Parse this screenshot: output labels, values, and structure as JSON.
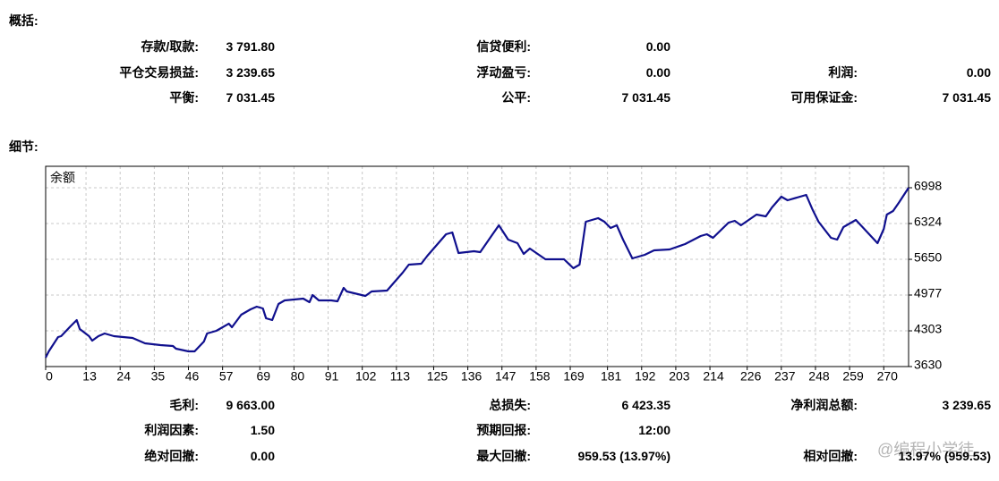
{
  "summary": {
    "title": "概括:",
    "rows": [
      [
        {
          "label": "存款/取款:",
          "value": "3 791.80"
        },
        {
          "label": "信贷便利:",
          "value": "0.00"
        }
      ],
      [
        {
          "label": "平仓交易损益:",
          "value": "3 239.65"
        },
        {
          "label": "浮动盈亏:",
          "value": "0.00"
        },
        {
          "label": "利润:",
          "value": "0.00"
        }
      ],
      [
        {
          "label": "平衡:",
          "value": "7 031.45"
        },
        {
          "label": "公平:",
          "value": "7 031.45"
        },
        {
          "label": "可用保证金:",
          "value": "7 031.45"
        }
      ]
    ]
  },
  "details_title": "细节:",
  "chart_data": {
    "type": "line",
    "x": [
      0,
      1,
      4,
      5,
      8,
      10,
      11,
      14,
      15,
      17,
      19,
      22,
      28,
      32,
      37,
      41,
      42,
      46,
      48,
      51,
      52,
      55,
      59,
      60,
      63,
      66,
      68,
      70,
      71,
      73,
      75,
      77,
      83,
      85,
      86,
      88,
      92,
      94,
      96,
      97,
      103,
      105,
      110,
      113,
      115,
      117,
      121,
      123,
      127,
      129,
      131,
      133,
      138,
      140,
      144,
      146,
      149,
      152,
      154,
      156,
      161,
      167,
      170,
      172,
      174,
      178,
      180,
      182,
      184,
      186,
      189,
      193,
      196,
      201,
      206,
      211,
      213,
      215,
      220,
      222,
      224,
      229,
      232,
      234,
      237,
      239,
      245,
      247,
      249,
      253,
      255,
      257,
      261,
      268,
      270,
      271,
      273,
      275,
      278
    ],
    "series": [
      {
        "name": "余额",
        "color": "#10108e",
        "values": [
          3798,
          3916,
          4186,
          4203,
          4388,
          4506,
          4337,
          4203,
          4118,
          4203,
          4253,
          4203,
          4169,
          4068,
          4034,
          4017,
          3967,
          3916,
          3916,
          4102,
          4253,
          4304,
          4438,
          4371,
          4607,
          4708,
          4758,
          4725,
          4539,
          4505,
          4809,
          4876,
          4910,
          4842,
          4977,
          4876,
          4876,
          4859,
          5112,
          5045,
          4960,
          5045,
          5061,
          5263,
          5398,
          5550,
          5567,
          5718,
          5988,
          6122,
          6156,
          5769,
          5802,
          5786,
          6122,
          6291,
          6021,
          5954,
          5752,
          5853,
          5651,
          5651,
          5482,
          5550,
          6358,
          6425,
          6358,
          6240,
          6291,
          6021,
          5668,
          5735,
          5819,
          5836,
          5937,
          6089,
          6122,
          6055,
          6341,
          6375,
          6291,
          6493,
          6459,
          6628,
          6830,
          6762,
          6863,
          6594,
          6358,
          6055,
          6021,
          6257,
          6392,
          5954,
          6223,
          6493,
          6560,
          6729,
          6998
        ]
      }
    ],
    "xlim": [
      0,
      278
    ],
    "xticks": [
      0,
      13,
      24,
      35,
      46,
      57,
      69,
      80,
      91,
      102,
      113,
      125,
      136,
      147,
      158,
      169,
      181,
      192,
      203,
      214,
      226,
      237,
      248,
      259,
      270
    ],
    "ylim": [
      3630,
      7402
    ],
    "yticks": [
      3630,
      4303,
      4977,
      5650,
      6324,
      6998
    ],
    "y_axis_side": "right",
    "grid": true
  },
  "stats": {
    "rows": [
      [
        {
          "label": "毛利:",
          "value": "9 663.00"
        },
        {
          "label": "总损失:",
          "value": "6 423.35"
        },
        {
          "label": "净利润总额:",
          "value": "3 239.65"
        }
      ],
      [
        {
          "label": "利润因素:",
          "value": "1.50"
        },
        {
          "label": "预期回报:",
          "value": "12:00"
        }
      ],
      [
        {
          "label": "绝对回撤:",
          "value": "0.00"
        },
        {
          "label": "最大回撤:",
          "value": "959.53 (13.97%)"
        },
        {
          "label": "相对回撤:",
          "value": "13.97% (959.53)"
        }
      ]
    ]
  },
  "watermark": "@编程小学徒"
}
